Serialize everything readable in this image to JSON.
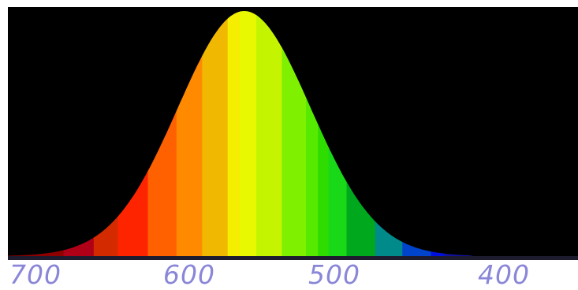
{
  "chart_data": {
    "type": "area",
    "title": "",
    "xlabel": "",
    "ylabel": "",
    "x_axis": {
      "reversed": true,
      "xlim": [
        404,
        712
      ],
      "ticks": [
        700,
        600,
        500,
        400
      ]
    },
    "tick_labels": [
      "700",
      "600",
      "500",
      "400"
    ],
    "curve": {
      "shape": "gaussian",
      "peak_x": 555,
      "peak_y": 1.0,
      "sigma": 44
    },
    "ylim": [
      0,
      1.0
    ],
    "grid": false,
    "legend": "none",
    "bands": [
      {
        "x0": 712,
        "x1": 675,
        "color": "#8e0000"
      },
      {
        "x0": 675,
        "x1": 655,
        "color": "#b00018"
      },
      {
        "x0": 655,
        "x1": 639,
        "color": "#d42a00"
      },
      {
        "x0": 639,
        "x1": 619,
        "color": "#ff2400"
      },
      {
        "x0": 619,
        "x1": 600,
        "color": "#ff6000"
      },
      {
        "x0": 600,
        "x1": 583,
        "color": "#ff8a00"
      },
      {
        "x0": 583,
        "x1": 566,
        "color": "#f0b800"
      },
      {
        "x0": 566,
        "x1": 558,
        "color": "#f5ee00"
      },
      {
        "x0": 558,
        "x1": 547,
        "color": "#e8f800"
      },
      {
        "x0": 547,
        "x1": 530,
        "color": "#c4f400"
      },
      {
        "x0": 530,
        "x1": 514,
        "color": "#7ef000"
      },
      {
        "x0": 514,
        "x1": 506,
        "color": "#56ea00"
      },
      {
        "x0": 506,
        "x1": 499,
        "color": "#2fdc00"
      },
      {
        "x0": 499,
        "x1": 487,
        "color": "#18d818"
      },
      {
        "x0": 487,
        "x1": 468,
        "color": "#00a81e"
      },
      {
        "x0": 468,
        "x1": 450,
        "color": "#008a8a"
      },
      {
        "x0": 450,
        "x1": 431,
        "color": "#0044cc"
      },
      {
        "x0": 431,
        "x1": 422,
        "color": "#0010dd"
      },
      {
        "x0": 422,
        "x1": 404,
        "color": "#10129a"
      }
    ],
    "colors": {
      "background": "#000000",
      "tick_label": "#8a86d8",
      "baseline": "#1c1c2e"
    }
  }
}
